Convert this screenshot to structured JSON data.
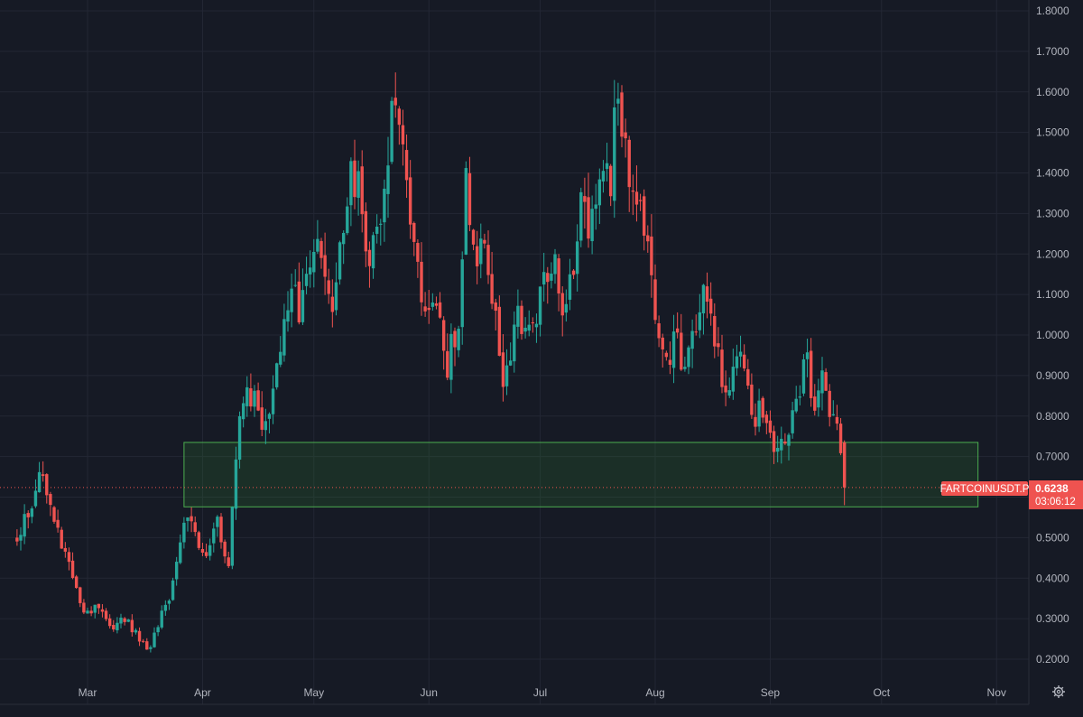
{
  "chart_data": {
    "type": "candlestick",
    "symbol": "FARTCOINUSDT.P",
    "last_price": "0.6238",
    "countdown": "03:06:12",
    "x_labels": [
      "Mar",
      "Apr",
      "May",
      "Jun",
      "Jul",
      "Aug",
      "Sep",
      "Oct",
      "Nov"
    ],
    "y_ticks": [
      "0.2000",
      "0.3000",
      "0.4000",
      "0.5000",
      "0.6000",
      "0.7000",
      "0.8000",
      "0.9000",
      "1.0000",
      "1.1000",
      "1.2000",
      "1.3000",
      "1.4000",
      "1.5000",
      "1.6000",
      "1.7000",
      "1.8000"
    ],
    "ylim": [
      0.168,
      1.84
    ],
    "grid": true,
    "zone": {
      "from_date": "2025-03-27",
      "to_date": "2025-10-27",
      "low": 0.576,
      "high": 0.735,
      "color": "#2e7d32"
    },
    "colors": {
      "up": "#26a69a",
      "down": "#ef5350",
      "background": "#161a25",
      "grid": "#232734",
      "text": "#b2b5be",
      "zone_border": "#4caf50"
    },
    "anchors": [
      [
        "2025-02-10",
        0.5
      ],
      [
        "2025-02-13",
        0.56
      ],
      [
        "2025-02-16",
        0.66
      ],
      [
        "2025-02-20",
        0.55
      ],
      [
        "2025-02-25",
        0.4
      ],
      [
        "2025-02-28",
        0.31
      ],
      [
        "2025-03-04",
        0.33
      ],
      [
        "2025-03-07",
        0.27
      ],
      [
        "2025-03-11",
        0.3
      ],
      [
        "2025-03-15",
        0.25
      ],
      [
        "2025-03-18",
        0.22
      ],
      [
        "2025-03-20",
        0.29
      ],
      [
        "2025-03-23",
        0.36
      ],
      [
        "2025-03-27",
        0.55
      ],
      [
        "2025-03-30",
        0.51
      ],
      [
        "2025-04-02",
        0.44
      ],
      [
        "2025-04-05",
        0.53
      ],
      [
        "2025-04-08",
        0.43
      ],
      [
        "2025-04-10",
        0.72
      ],
      [
        "2025-04-12",
        0.86
      ],
      [
        "2025-04-16",
        0.82
      ],
      [
        "2025-04-18",
        0.76
      ],
      [
        "2025-04-21",
        0.93
      ],
      [
        "2025-04-25",
        1.11
      ],
      [
        "2025-04-27",
        1.07
      ],
      [
        "2025-05-01",
        1.22
      ],
      [
        "2025-05-05",
        1.08
      ],
      [
        "2025-05-07",
        1.13
      ],
      [
        "2025-05-11",
        1.42
      ],
      [
        "2025-05-13",
        1.38
      ],
      [
        "2025-05-16",
        1.2
      ],
      [
        "2025-05-19",
        1.32
      ],
      [
        "2025-05-22",
        1.54
      ],
      [
        "2025-05-26",
        1.39
      ],
      [
        "2025-05-30",
        1.07
      ],
      [
        "2025-06-03",
        1.09
      ],
      [
        "2025-06-06",
        0.93
      ],
      [
        "2025-06-09",
        1.03
      ],
      [
        "2025-06-11",
        1.37
      ],
      [
        "2025-06-13",
        1.24
      ],
      [
        "2025-06-17",
        1.17
      ],
      [
        "2025-06-21",
        0.91
      ],
      [
        "2025-06-25",
        1.04
      ],
      [
        "2025-06-29",
        0.99
      ],
      [
        "2025-07-02",
        1.18
      ],
      [
        "2025-07-05",
        1.17
      ],
      [
        "2025-07-08",
        1.05
      ],
      [
        "2025-07-12",
        1.3
      ],
      [
        "2025-07-15",
        1.27
      ],
      [
        "2025-07-18",
        1.41
      ],
      [
        "2025-07-20",
        1.36
      ],
      [
        "2025-07-22",
        1.64
      ],
      [
        "2025-07-24",
        1.45
      ],
      [
        "2025-07-26",
        1.31
      ],
      [
        "2025-07-28",
        1.35
      ],
      [
        "2025-07-31",
        1.1
      ],
      [
        "2025-08-04",
        0.91
      ],
      [
        "2025-08-07",
        1.0
      ],
      [
        "2025-08-09",
        0.9
      ],
      [
        "2025-08-13",
        1.06
      ],
      [
        "2025-08-15",
        1.13
      ],
      [
        "2025-08-18",
        0.93
      ],
      [
        "2025-08-21",
        0.87
      ],
      [
        "2025-08-24",
        0.98
      ],
      [
        "2025-08-27",
        0.79
      ],
      [
        "2025-08-29",
        0.83
      ],
      [
        "2025-09-02",
        0.74
      ],
      [
        "2025-09-05",
        0.75
      ],
      [
        "2025-09-08",
        0.86
      ],
      [
        "2025-09-11",
        0.92
      ],
      [
        "2025-09-13",
        0.82
      ],
      [
        "2025-09-15",
        0.93
      ],
      [
        "2025-09-17",
        0.78
      ],
      [
        "2025-09-19",
        0.76
      ],
      [
        "2025-09-21",
        0.6238
      ]
    ],
    "x_axis_dates": {
      "Mar": "2025-03-01",
      "Apr": "2025-04-01",
      "May": "2025-05-01",
      "Jun": "2025-06-01",
      "Jul": "2025-07-01",
      "Aug": "2025-08-01",
      "Sep": "2025-09-01",
      "Oct": "2025-10-01",
      "Nov": "2025-11-01"
    }
  },
  "ui": {
    "settings_icon": "gear-icon"
  }
}
